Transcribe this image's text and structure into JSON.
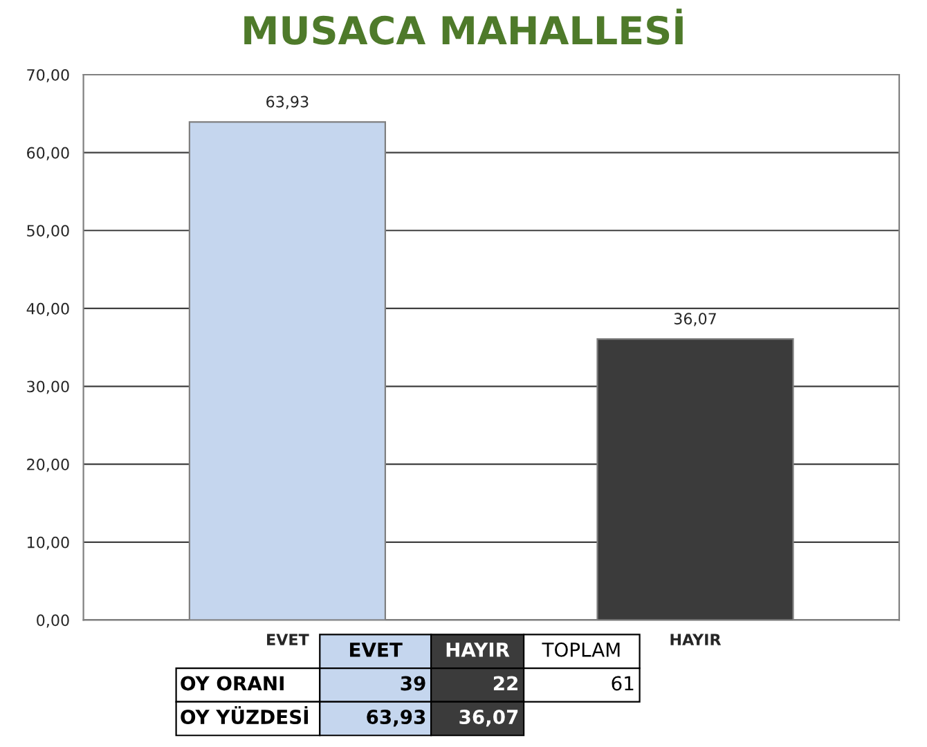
{
  "chart_data": {
    "type": "bar",
    "title": "MUSACA MAHALLESİ",
    "categories": [
      "EVET",
      "HAYIR"
    ],
    "values": [
      63.93,
      36.07
    ],
    "colors": [
      "#c5d6ee",
      "#3b3b3b"
    ],
    "value_labels": [
      "63,93",
      "36,07"
    ],
    "ylim": [
      0,
      70
    ],
    "yticks": [
      {
        "value": 0,
        "label": "0,00"
      },
      {
        "value": 10,
        "label": "10,00"
      },
      {
        "value": 20,
        "label": "20,00"
      },
      {
        "value": 30,
        "label": "30,00"
      },
      {
        "value": 40,
        "label": "40,00"
      },
      {
        "value": 50,
        "label": "50,00"
      },
      {
        "value": 60,
        "label": "60,00"
      },
      {
        "value": 70,
        "label": "70,00"
      }
    ],
    "grid": "y",
    "annotations": [
      "EVET",
      "HAYIR",
      "TOPLAM",
      "OY ORANI",
      "39",
      "22",
      "61",
      "OY YÜZDESİ",
      "63,93",
      "36,07"
    ]
  }
}
